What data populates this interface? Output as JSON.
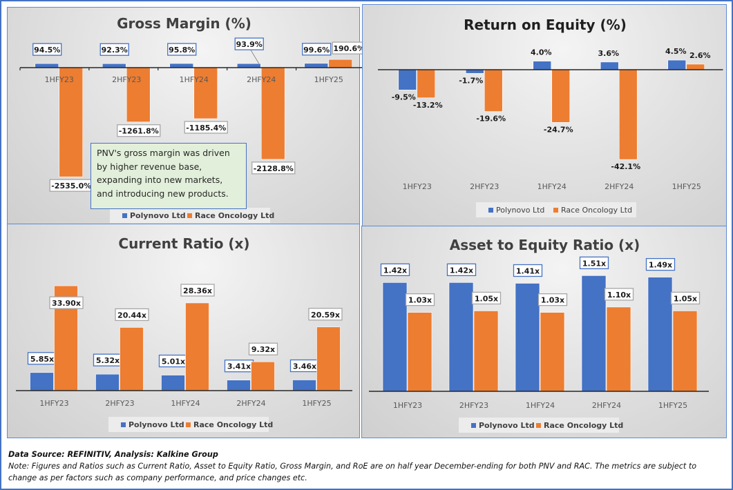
{
  "colors": {
    "polynovo": "#4472c4",
    "race": "#ed7d31",
    "frame": "#4472c4",
    "annotation_bg": "#e2efda"
  },
  "legend": {
    "series1": "Polynovo Ltd",
    "series2": "Race Oncology Ltd"
  },
  "chart_data": [
    {
      "id": "gross-margin",
      "type": "bar",
      "title": "Gross Margin (%)",
      "categories": [
        "1HFY23",
        "2HFY23",
        "1HFY24",
        "2HFY24",
        "1HFY25"
      ],
      "series": [
        {
          "name": "Polynovo Ltd",
          "values": [
            94.5,
            92.3,
            95.8,
            93.9,
            99.6
          ],
          "labels": [
            "94.5%",
            "92.3%",
            "95.8%",
            "93.9%",
            "99.6%"
          ]
        },
        {
          "name": "Race Oncology Ltd",
          "values": [
            -2535.0,
            -1261.8,
            -1185.4,
            -2128.8,
            190.6
          ],
          "labels": [
            "-2535.0%",
            "-1261.8%",
            "-1185.4%",
            "-2128.8%",
            "190.6%"
          ]
        }
      ],
      "annotation": "PNV's gross margin was driven by higher revenue base, expanding into new markets, and introducing new products.",
      "legend": "bottom"
    },
    {
      "id": "return-on-equity",
      "type": "bar",
      "title": "Return on Equity (%)",
      "categories": [
        "1HFY23",
        "2HFY23",
        "1HFY24",
        "2HFY24",
        "1HFY25"
      ],
      "series": [
        {
          "name": "Polynovo Ltd",
          "values": [
            -9.5,
            -1.7,
            4.0,
            3.6,
            4.5
          ],
          "labels": [
            "-9.5%",
            "-1.7%",
            "4.0%",
            "3.6%",
            "4.5%"
          ]
        },
        {
          "name": "Race Oncology Ltd",
          "values": [
            -13.2,
            -19.6,
            -24.7,
            -42.1,
            2.6
          ],
          "labels": [
            "-13.2%",
            "-19.6%",
            "-24.7%",
            "-42.1%",
            "2.6%"
          ]
        }
      ],
      "legend": "bottom"
    },
    {
      "id": "current-ratio",
      "type": "bar",
      "title": "Current Ratio (x)",
      "categories": [
        "1HFY23",
        "2HFY23",
        "1HFY24",
        "2HFY24",
        "1HFY25"
      ],
      "series": [
        {
          "name": "Polynovo Ltd",
          "values": [
            5.85,
            5.32,
            5.01,
            3.41,
            3.46
          ],
          "labels": [
            "5.85x",
            "5.32x",
            "5.01x",
            "3.41x",
            "3.46x"
          ]
        },
        {
          "name": "Race Oncology Ltd",
          "values": [
            33.9,
            20.44,
            28.36,
            9.32,
            20.59
          ],
          "labels": [
            "33.90x",
            "20.44x",
            "28.36x",
            "9.32x",
            "20.59x"
          ]
        }
      ],
      "legend": "bottom"
    },
    {
      "id": "asset-to-equity",
      "type": "bar",
      "title": "Asset to Equity Ratio (x)",
      "categories": [
        "1HFY23",
        "2HFY23",
        "1HFY24",
        "2HFY24",
        "1HFY25"
      ],
      "series": [
        {
          "name": "Polynovo Ltd",
          "values": [
            1.42,
            1.42,
            1.41,
            1.51,
            1.49
          ],
          "labels": [
            "1.42x",
            "1.42x",
            "1.41x",
            "1.51x",
            "1.49x"
          ]
        },
        {
          "name": "Race Oncology Ltd",
          "values": [
            1.03,
            1.05,
            1.03,
            1.1,
            1.05
          ],
          "labels": [
            "1.03x",
            "1.05x",
            "1.03x",
            "1.10x",
            "1.05x"
          ]
        }
      ],
      "legend": "bottom"
    }
  ],
  "footer": {
    "source": "Data Source: REFINITIV, Analysis: Kalkine Group",
    "note": "Note: Figures and Ratios such as Current Ratio, Asset to Equity Ratio, Gross Margin, and RoE are on half year December-ending for both PNV and RAC. The metrics are subject to change as per factors such as company performance, and price changes etc."
  }
}
